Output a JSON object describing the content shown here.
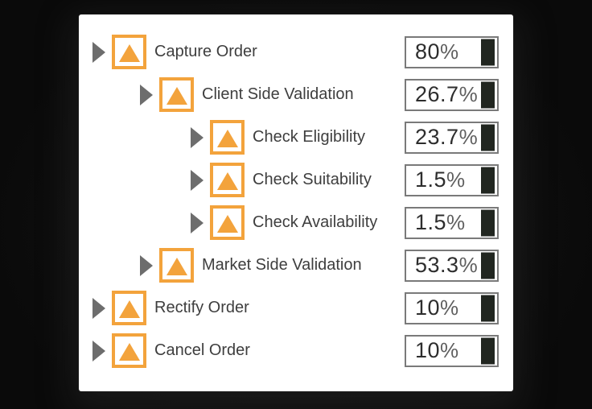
{
  "colors": {
    "background": "#0a0a0a",
    "card": "#ffffff",
    "accent_orange": "#f3a33c",
    "arrow_gray": "#6d6d6d",
    "percent_box_border": "#7a7a7a",
    "percent_bar": "#212620",
    "label_text": "#3e3e3e",
    "value_text": "#2d2d2d",
    "suffix_text": "#5f5f5f"
  },
  "icons": {
    "expand_arrow": "right-pointing-gray-triangle",
    "process_node": "orange-square-with-orange-triangle",
    "percent_bar": "dark-vertical-handle"
  },
  "tree": {
    "rows": [
      {
        "label": "Capture Order",
        "level": 1,
        "value": "80",
        "suffix": "%"
      },
      {
        "label": "Client Side Validation",
        "level": 2,
        "value": "26.7",
        "suffix": "%"
      },
      {
        "label": "Check Eligibility",
        "level": 3,
        "value": "23.7",
        "suffix": "%"
      },
      {
        "label": "Check Suitability",
        "level": 3,
        "value": "1.5",
        "suffix": "%"
      },
      {
        "label": "Check Availability",
        "level": 3,
        "value": "1.5",
        "suffix": "%"
      },
      {
        "label": "Market Side Validation",
        "level": 2,
        "value": "53.3",
        "suffix": "%"
      },
      {
        "label": "Rectify Order",
        "level": 1,
        "value": "10",
        "suffix": "%"
      },
      {
        "label": "Cancel Order",
        "level": 1,
        "value": "10",
        "suffix": "%"
      }
    ]
  }
}
